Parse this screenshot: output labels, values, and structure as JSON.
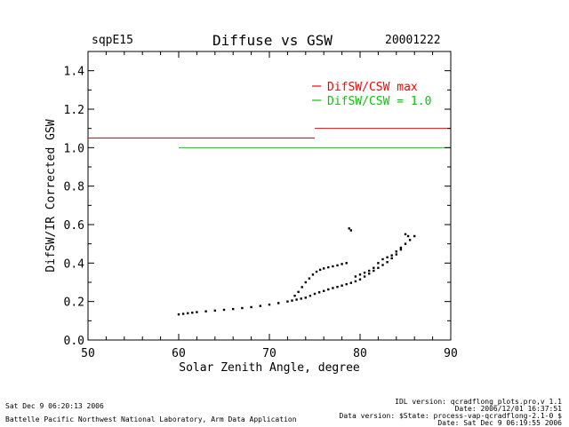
{
  "header": {
    "site": "sqpE15",
    "title": "Diffuse vs GSW",
    "date": "20001222"
  },
  "chart_data": {
    "type": "scatter",
    "title": "Diffuse vs GSW",
    "xlabel": "Solar Zenith Angle, degree",
    "ylabel": "DifSW/IR Corrected GSW",
    "xlim": [
      50,
      90
    ],
    "ylim": [
      0.0,
      1.5
    ],
    "xticks": [
      50,
      60,
      70,
      80,
      90
    ],
    "xtick_labels": [
      "50",
      "60",
      "70",
      "80",
      "90"
    ],
    "yticks": [
      0.0,
      0.2,
      0.4,
      0.6,
      0.8,
      1.0,
      1.2,
      1.4
    ],
    "ytick_labels": [
      "0.0",
      "0.2",
      "0.4",
      "0.6",
      "0.8",
      "1.0",
      "1.2",
      "1.4"
    ],
    "legend": {
      "position": "top-right",
      "entries": [
        {
          "label": "DifSW/CSW max",
          "color": "#ff0000"
        },
        {
          "label": "DifSW/CSW = 1.0",
          "color": "#00cc00"
        }
      ]
    },
    "reference_lines": [
      {
        "name": "DifSW/CSW max",
        "color": "#ff0000",
        "segments": [
          [
            50,
            75,
            1.05
          ],
          [
            75,
            90,
            1.1
          ]
        ]
      },
      {
        "name": "DifSW/CSW = 1.0",
        "color": "#00cc00",
        "segments": [
          [
            60,
            90,
            1.0
          ]
        ]
      }
    ],
    "series": [
      {
        "name": "observations",
        "color": "#000000",
        "x": [
          60.0,
          60.5,
          61.0,
          61.5,
          62.0,
          63.0,
          64.0,
          65.0,
          66.0,
          67.0,
          68.0,
          69.0,
          70.0,
          71.0,
          72.0,
          72.5,
          73.0,
          73.5,
          74.0,
          74.5,
          75.0,
          75.5,
          76.0,
          76.5,
          77.0,
          77.5,
          78.0,
          78.5,
          79.0,
          79.5,
          80.0,
          80.5,
          81.0,
          81.5,
          82.0,
          82.5,
          83.0,
          83.5,
          84.0,
          84.5,
          85.0,
          85.5,
          86.0
        ],
        "y": [
          0.133,
          0.136,
          0.139,
          0.142,
          0.145,
          0.149,
          0.153,
          0.157,
          0.161,
          0.166,
          0.171,
          0.177,
          0.184,
          0.192,
          0.2,
          0.205,
          0.21,
          0.215,
          0.22,
          0.23,
          0.24,
          0.248,
          0.255,
          0.263,
          0.27,
          0.276,
          0.283,
          0.29,
          0.297,
          0.305,
          0.315,
          0.33,
          0.345,
          0.36,
          0.375,
          0.39,
          0.405,
          0.425,
          0.445,
          0.47,
          0.5,
          0.52,
          0.54
        ]
      },
      {
        "name": "observations (upper branch)",
        "color": "#000000",
        "x": [
          72.8,
          73.2,
          73.6,
          74.0,
          74.4,
          74.8,
          75.2,
          75.6,
          76.0,
          76.5,
          77.0,
          77.5,
          78.0,
          78.5,
          78.8,
          79.0,
          79.5,
          80.0,
          80.5,
          81.0,
          81.5,
          82.0,
          82.5,
          83.0,
          83.5,
          84.0,
          84.5,
          85.0,
          85.3
        ],
        "y": [
          0.23,
          0.25,
          0.275,
          0.3,
          0.32,
          0.34,
          0.355,
          0.365,
          0.372,
          0.378,
          0.383,
          0.388,
          0.395,
          0.4,
          0.58,
          0.57,
          0.33,
          0.34,
          0.35,
          0.36,
          0.375,
          0.4,
          0.42,
          0.43,
          0.44,
          0.46,
          0.48,
          0.55,
          0.54
        ]
      }
    ]
  },
  "footer": {
    "left_line1": "Sat Dec  9 06:20:13 2006",
    "left_line2": "Battelle Pacific Northwest National Laboratory, Arm Data Application",
    "right_line1": "IDL version: qcradflong_plots.pro,v 1.1",
    "right_line2": "Date: 2006/12/01 16:37:51",
    "right_line3": "Data version: $State: process-vap-qcradflong-2.1-0 $",
    "right_line4": "Date: Sat Dec  9 06:19:55 2006"
  }
}
